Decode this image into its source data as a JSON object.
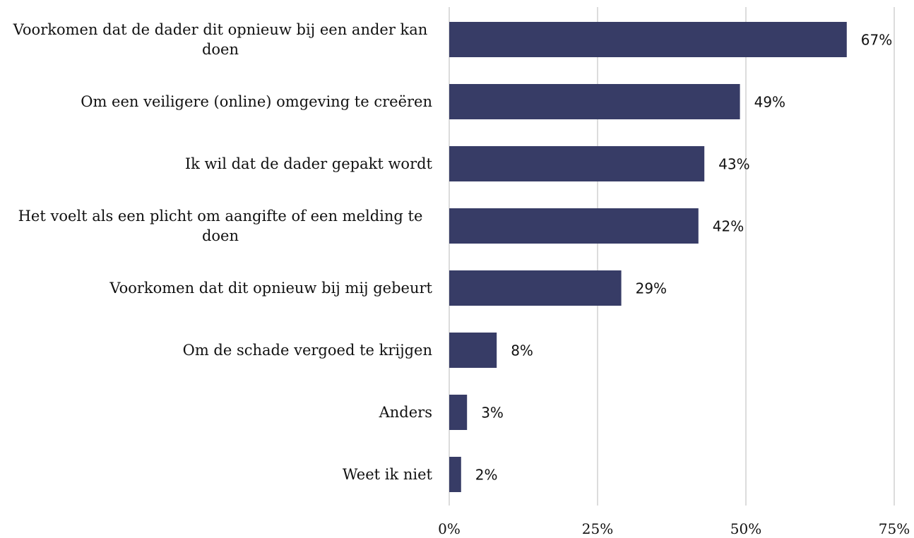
{
  "chart_data": {
    "type": "bar",
    "orientation": "horizontal",
    "categories": [
      "Voorkomen dat de dader dit opnieuw bij een ander kan doen",
      "Om een veiligere (online) omgeving te creëren",
      "Ik wil dat de dader gepakt wordt",
      "Het voelt als een plicht om aangifte of een melding te doen",
      "Voorkomen dat dit opnieuw bij mij gebeurt",
      "Om de schade vergoed te krijgen",
      "Anders",
      "Weet ik niet"
    ],
    "values": [
      67,
      49,
      43,
      42,
      29,
      8,
      3,
      2
    ],
    "value_labels": [
      "67%",
      "49%",
      "43%",
      "42%",
      "29%",
      "8%",
      "3%",
      "2%"
    ],
    "color": "#373c66",
    "xlim": [
      0,
      75
    ],
    "xticks": [
      {
        "value": 0,
        "label": "0%"
      },
      {
        "value": 25,
        "label": "25%"
      },
      {
        "value": 50,
        "label": "50%"
      },
      {
        "value": 75,
        "label": "75%"
      }
    ],
    "grid": true
  }
}
